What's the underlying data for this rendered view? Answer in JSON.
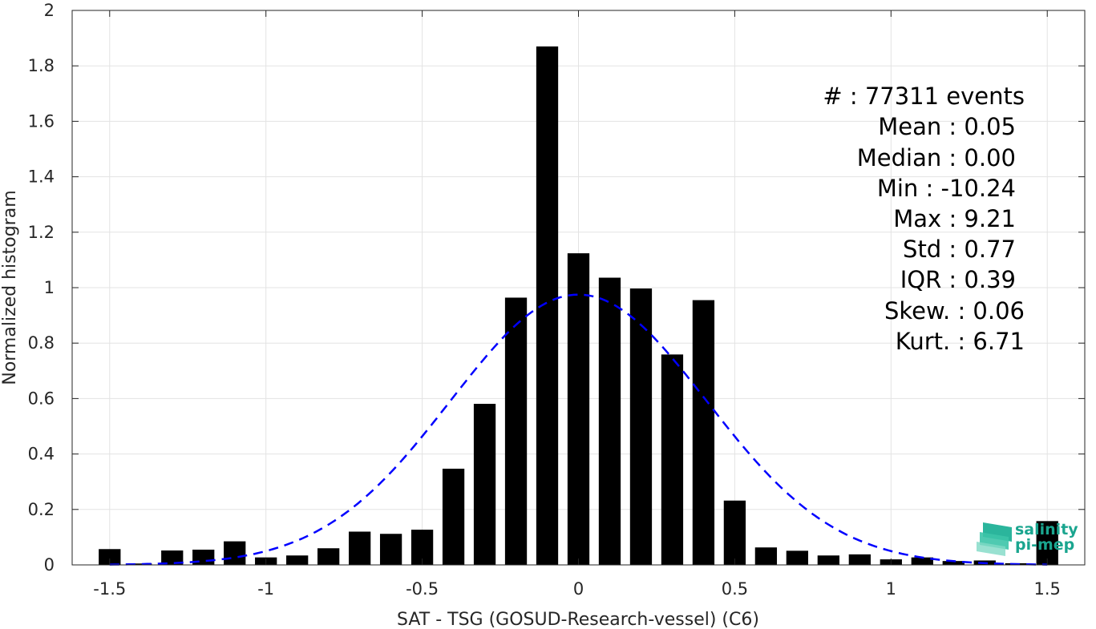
{
  "chart_data": {
    "type": "bar",
    "xlabel": "SAT - TSG (GOSUD-Research-vessel) (C6)",
    "ylabel": "Normalized histogram",
    "xlim": [
      -1.62,
      1.62
    ],
    "ylim": [
      0,
      2
    ],
    "grid": true,
    "x_ticks": [
      -1.5,
      -1,
      -0.5,
      0,
      0.5,
      1,
      1.5
    ],
    "x_tick_labels": [
      "-1.5",
      "-1",
      "-0.5",
      "0",
      "0.5",
      "1",
      "1.5"
    ],
    "y_ticks": [
      0,
      0.2,
      0.4,
      0.6,
      0.8,
      1,
      1.2,
      1.4,
      1.6,
      1.8,
      2
    ],
    "y_tick_labels": [
      "0",
      "0.2",
      "0.4",
      "0.6",
      "0.8",
      "1",
      "1.2",
      "1.4",
      "1.6",
      "1.8",
      "2"
    ],
    "bar_width": 0.07,
    "bar_color": "#000000",
    "x": [
      -1.5,
      -1.4,
      -1.3,
      -1.2,
      -1.1,
      -1.0,
      -0.9,
      -0.8,
      -0.7,
      -0.6,
      -0.5,
      -0.4,
      -0.3,
      -0.2,
      -0.1,
      0.0,
      0.1,
      0.2,
      0.3,
      0.4,
      0.5,
      0.6,
      0.7,
      0.8,
      0.9,
      1.0,
      1.1,
      1.2,
      1.3,
      1.4,
      1.5
    ],
    "values": [
      0.057,
      0.005,
      0.052,
      0.055,
      0.085,
      0.027,
      0.034,
      0.06,
      0.12,
      0.112,
      0.127,
      0.347,
      0.581,
      0.964,
      1.87,
      1.124,
      1.036,
      0.997,
      0.759,
      0.955,
      0.232,
      0.063,
      0.051,
      0.034,
      0.038,
      0.02,
      0.027,
      0.014,
      0.016,
      0.006,
      0.158
    ],
    "fit_curve": {
      "type": "gaussian",
      "style": "dashed",
      "color": "#0000ff",
      "mean": 0.0,
      "std": 0.41,
      "peak": 0.975
    },
    "stats": [
      "#  : 77311 events",
      "Mean : 0.05",
      "Median : 0.00",
      "Min : -10.24",
      "Max : 9.21",
      "Std : 0.77",
      "IQR : 0.39",
      "Skew. : 0.06",
      "Kurt. : 6.71"
    ]
  },
  "logo": {
    "line1": "salinity",
    "line2": "pi-mep",
    "color": "#1aa58f"
  }
}
